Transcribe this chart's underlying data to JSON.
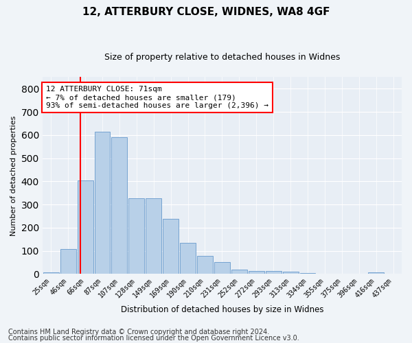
{
  "title1": "12, ATTERBURY CLOSE, WIDNES, WA8 4GF",
  "title2": "Size of property relative to detached houses in Widnes",
  "xlabel": "Distribution of detached houses by size in Widnes",
  "ylabel": "Number of detached properties",
  "footer1": "Contains HM Land Registry data © Crown copyright and database right 2024.",
  "footer2": "Contains public sector information licensed under the Open Government Licence v3.0.",
  "annotation_title": "12 ATTERBURY CLOSE: 71sqm",
  "annotation_line1": "← 7% of detached houses are smaller (179)",
  "annotation_line2": "93% of semi-detached houses are larger (2,396) →",
  "bar_labels": [
    "25sqm",
    "46sqm",
    "66sqm",
    "87sqm",
    "107sqm",
    "128sqm",
    "149sqm",
    "169sqm",
    "190sqm",
    "210sqm",
    "231sqm",
    "252sqm",
    "272sqm",
    "293sqm",
    "313sqm",
    "334sqm",
    "355sqm",
    "375sqm",
    "396sqm",
    "416sqm",
    "437sqm"
  ],
  "bar_values": [
    7,
    107,
    403,
    615,
    590,
    328,
    328,
    238,
    135,
    78,
    50,
    18,
    13,
    13,
    10,
    5,
    0,
    0,
    0,
    7,
    0
  ],
  "bar_color": "#b8d0e8",
  "bar_edge_color": "#6699cc",
  "red_line_x": 1.72,
  "ylim": [
    0,
    850
  ],
  "yticks": [
    0,
    100,
    200,
    300,
    400,
    500,
    600,
    700,
    800
  ],
  "bg_color": "#e8eef5",
  "grid_color": "#ffffff",
  "title1_fontsize": 11,
  "title2_fontsize": 9,
  "annotation_fontsize": 8,
  "footer_fontsize": 7
}
